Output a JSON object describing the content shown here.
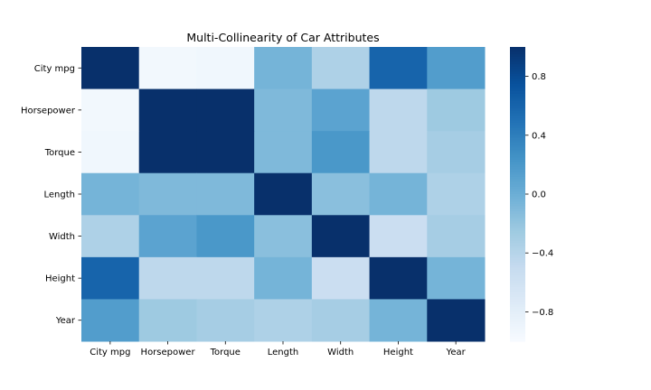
{
  "chart_data": {
    "type": "heatmap",
    "title": "Multi-Collinearity of Car Attributes",
    "x_labels": [
      "City mpg",
      "Horsepower",
      "Torque",
      "Length",
      "Width",
      "Height",
      "Year"
    ],
    "y_labels": [
      "City mpg",
      "Horsepower",
      "Torque",
      "Length",
      "Width",
      "Height",
      "Year"
    ],
    "values": [
      [
        1.0,
        -0.95,
        -0.93,
        -0.05,
        -0.35,
        0.6,
        0.15
      ],
      [
        -0.95,
        1.0,
        1.0,
        -0.1,
        0.1,
        -0.45,
        -0.25
      ],
      [
        -0.93,
        1.0,
        1.0,
        -0.1,
        0.2,
        -0.45,
        -0.3
      ],
      [
        -0.05,
        -0.1,
        -0.1,
        1.0,
        -0.15,
        -0.05,
        -0.35
      ],
      [
        -0.35,
        0.1,
        0.2,
        -0.15,
        1.0,
        -0.55,
        -0.3
      ],
      [
        0.6,
        -0.45,
        -0.45,
        -0.05,
        -0.55,
        1.0,
        -0.05
      ],
      [
        0.15,
        -0.25,
        -0.3,
        -0.35,
        -0.3,
        -0.05,
        1.0
      ]
    ],
    "colorbar": {
      "min": -1.0,
      "max": 1.0,
      "ticks": [
        0.8,
        0.4,
        0.0,
        -0.4,
        -0.8
      ],
      "tick_labels": [
        "0.8",
        "0.4",
        "0.0",
        "−0.4",
        "−0.8"
      ]
    },
    "colormap": [
      "#f7fbff",
      "#deebf7",
      "#c6dbef",
      "#9ecae1",
      "#6baed6",
      "#4292c6",
      "#2171b5",
      "#08519c",
      "#08306b"
    ]
  }
}
